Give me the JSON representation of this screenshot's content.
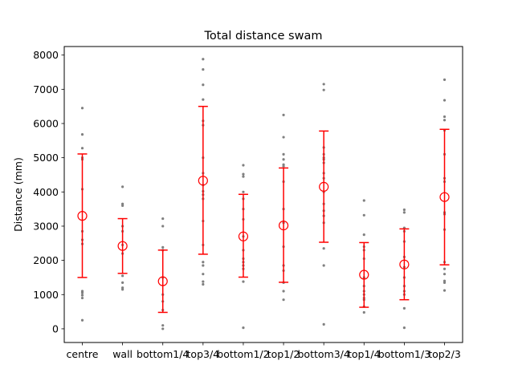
{
  "chart_data": {
    "type": "scatter",
    "title": "Total distance swam",
    "xlabel": "",
    "ylabel": "Distance (mm)",
    "ylim": [
      -400,
      8250
    ],
    "yticks": [
      0,
      1000,
      2000,
      3000,
      4000,
      5000,
      6000,
      7000,
      8000
    ],
    "categories": [
      "centre",
      "wall",
      "bottom1/4",
      "top3/4",
      "bottom1/2",
      "top1/2",
      "bottom3/4",
      "top1/4",
      "bottom1/3",
      "top2/3"
    ],
    "colors": {
      "points": "#808080",
      "mean_marker": "#ff0000",
      "error_bar": "#ff0000"
    },
    "mean": [
      3300,
      2420,
      1390,
      4330,
      2700,
      3020,
      4150,
      1580,
      1880,
      3850
    ],
    "error_low": [
      1500,
      1620,
      480,
      2180,
      1510,
      1360,
      2530,
      630,
      850,
      1870
    ],
    "error_high": [
      5110,
      3220,
      2300,
      6500,
      3930,
      4700,
      5780,
      2520,
      2920,
      5830
    ],
    "points": [
      [
        6450,
        5680,
        5280,
        5000,
        4950,
        4080,
        2850,
        2600,
        2480,
        1100,
        1050,
        980,
        900,
        250
      ],
      [
        4150,
        3650,
        3600,
        3000,
        2850,
        2450,
        2200,
        1550,
        1350,
        1200,
        1150
      ],
      [
        3220,
        3000,
        2380,
        2300,
        1500,
        1000,
        800,
        550,
        100,
        0
      ],
      [
        7880,
        7580,
        7130,
        6700,
        6080,
        5950,
        5000,
        4550,
        4200,
        4020,
        3920,
        3800,
        3150,
        2450,
        1950,
        1850,
        1600,
        1380,
        1300
      ],
      [
        4780,
        4520,
        4450,
        4000,
        3800,
        3500,
        3200,
        2700,
        2300,
        2050,
        1950,
        1850,
        1750,
        1380,
        30
      ],
      [
        6250,
        5600,
        5100,
        4950,
        4800,
        4750,
        4300,
        3500,
        3100,
        2400,
        1850,
        1700,
        1350,
        1100,
        850
      ],
      [
        7150,
        6980,
        5300,
        5100,
        5000,
        4950,
        4850,
        4550,
        4400,
        4000,
        3650,
        3450,
        3300,
        3100,
        2350,
        1850,
        130
      ],
      [
        3750,
        3320,
        2750,
        2400,
        2300,
        2050,
        1500,
        1250,
        1100,
        1000,
        900,
        850,
        650,
        480
      ],
      [
        3480,
        3400,
        2950,
        2850,
        2550,
        2100,
        1800,
        1500,
        1250,
        1100,
        1000,
        600,
        30
      ],
      [
        7280,
        6680,
        6200,
        6100,
        5800,
        5100,
        4400,
        4300,
        3400,
        3350,
        2900,
        1950,
        1750,
        1600,
        1400,
        1350,
        1120
      ]
    ]
  }
}
